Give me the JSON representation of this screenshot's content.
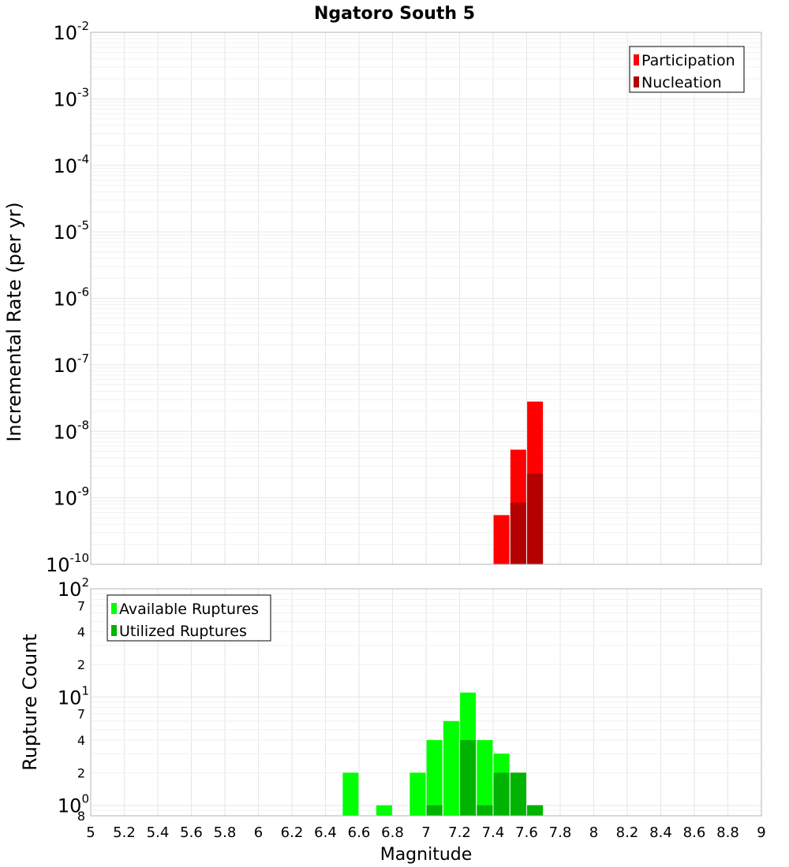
{
  "chart_data": [
    {
      "type": "bar",
      "title": "Ngatoro South 5",
      "xlabel": "",
      "ylabel": "Incremental Rate (per yr)",
      "yscale": "log",
      "ylim": [
        1e-10,
        0.01
      ],
      "xlim": [
        5,
        9
      ],
      "grid": true,
      "legend": "top-right",
      "y_ticks": [
        {
          "base": "10",
          "exp": "-10"
        },
        {
          "base": "10",
          "exp": "-9"
        },
        {
          "base": "10",
          "exp": "-8"
        },
        {
          "base": "10",
          "exp": "-7"
        },
        {
          "base": "10",
          "exp": "-6"
        },
        {
          "base": "10",
          "exp": "-5"
        },
        {
          "base": "10",
          "exp": "-4"
        },
        {
          "base": "10",
          "exp": "-3"
        },
        {
          "base": "10",
          "exp": "-2"
        }
      ],
      "series": [
        {
          "name": "Participation",
          "color": "#ff0000",
          "points": [
            {
              "x": 7.45,
              "y": 5.5e-10
            },
            {
              "x": 7.55,
              "y": 5.3e-09
            },
            {
              "x": 7.65,
              "y": 2.8e-08
            }
          ]
        },
        {
          "name": "Nucleation",
          "color": "#b30000",
          "points": [
            {
              "x": 7.55,
              "y": 8.5e-10
            },
            {
              "x": 7.65,
              "y": 2.3e-09
            }
          ]
        }
      ]
    },
    {
      "type": "bar",
      "xlabel": "Magnitude",
      "ylabel": "Rupture Count",
      "yscale": "log",
      "ylim": [
        0.8,
        100
      ],
      "xlim": [
        5,
        9
      ],
      "grid": true,
      "legend": "top-left",
      "x_ticks": [
        "5",
        "5.2",
        "5.4",
        "5.6",
        "5.8",
        "6",
        "6.2",
        "6.4",
        "6.6",
        "6.8",
        "7",
        "7.2",
        "7.4",
        "7.6",
        "7.8",
        "8",
        "8.2",
        "8.4",
        "8.6",
        "8.8",
        "9"
      ],
      "y_major_ticks": [
        {
          "value": 1,
          "base": "10",
          "exp": "0"
        },
        {
          "value": 10,
          "base": "10",
          "exp": "1"
        },
        {
          "value": 100,
          "base": "10",
          "exp": "2"
        }
      ],
      "y_minor_ticks": [
        {
          "value": 0.8,
          "label": "8"
        },
        {
          "value": 2,
          "label": "2"
        },
        {
          "value": 4,
          "label": "4"
        },
        {
          "value": 7,
          "label": "7"
        },
        {
          "value": 20,
          "label": "2"
        },
        {
          "value": 40,
          "label": "4"
        },
        {
          "value": 70,
          "label": "7"
        }
      ],
      "series": [
        {
          "name": "Available Ruptures",
          "color": "#00ff00",
          "points": [
            {
              "x": 6.55,
              "y": 2
            },
            {
              "x": 6.75,
              "y": 1
            },
            {
              "x": 6.95,
              "y": 2
            },
            {
              "x": 7.05,
              "y": 4
            },
            {
              "x": 7.15,
              "y": 6
            },
            {
              "x": 7.25,
              "y": 11
            },
            {
              "x": 7.35,
              "y": 4
            },
            {
              "x": 7.45,
              "y": 3
            },
            {
              "x": 7.55,
              "y": 2
            },
            {
              "x": 7.65,
              "y": 1
            }
          ]
        },
        {
          "name": "Utilized Ruptures",
          "color": "#00b300",
          "points": [
            {
              "x": 7.05,
              "y": 1
            },
            {
              "x": 7.25,
              "y": 4
            },
            {
              "x": 7.35,
              "y": 1
            },
            {
              "x": 7.45,
              "y": 2
            },
            {
              "x": 7.55,
              "y": 2
            },
            {
              "x": 7.65,
              "y": 1
            }
          ]
        }
      ]
    }
  ]
}
